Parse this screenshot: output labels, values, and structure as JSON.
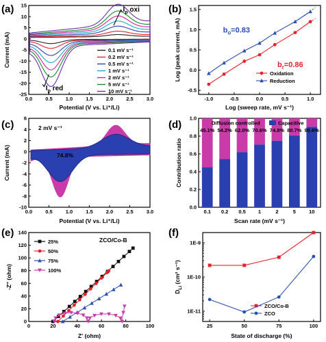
{
  "chart_data": [
    {
      "panel": "(a)",
      "type": "line",
      "xlabel": "Potential (V vs. Li⁺/Li)",
      "ylabel": "Current (mA)",
      "xlim": [
        0.0,
        3.0
      ],
      "ylim": [
        -25,
        15
      ],
      "xticks": [
        "0.0",
        "0.5",
        "1.0",
        "1.5",
        "2.0",
        "2.5",
        "3.0"
      ],
      "yticks": [
        "-25",
        "-20",
        "-15",
        "-10",
        "-5",
        "0",
        "5",
        "10",
        "15"
      ],
      "annotations": [
        "I",
        "p",
        " oxi",
        "I",
        "p",
        " red"
      ],
      "legend": "right",
      "series": [
        {
          "name": "0.1 mV s⁻¹",
          "color": "#222222",
          "scale": 0.1
        },
        {
          "name": "0.2 mV s⁻¹",
          "color": "#e8202a",
          "scale": 0.2
        },
        {
          "name": "0.5 mV s⁻¹",
          "color": "#2a3fb0",
          "scale": 0.35
        },
        {
          "name": "1 mV s⁻¹",
          "color": "#1aa8c8",
          "scale": 0.5
        },
        {
          "name": "2 mV s⁻¹",
          "color": "#d0219a",
          "scale": 0.65
        },
        {
          "name": "5 mV s⁻¹",
          "color": "#148a2a",
          "scale": 0.8
        },
        {
          "name": "10 mV s⁻¹",
          "color": "#6a2bb0",
          "scale": 1.0
        }
      ]
    },
    {
      "panel": "(b)",
      "type": "line",
      "xlabel": "Log (sweep rate, mV s⁻¹)",
      "ylabel": "Log (peak current, mA)",
      "xlim": [
        -1.2,
        1.2
      ],
      "ylim": [
        -0.6,
        1.6
      ],
      "xticks": [
        "-1.0",
        "-0.5",
        "0.0",
        "0.5",
        "1.0"
      ],
      "yticks": [
        "-0.5",
        "0.0",
        "0.5",
        "1.0",
        "1.5"
      ],
      "annotations": [
        {
          "text": "b",
          "sub": "o",
          "rest": "=0.83",
          "color": "#2a4fb0"
        },
        {
          "text": "b",
          "sub": "r",
          "rest": "=0.86",
          "color": "#e8202a"
        }
      ],
      "legend": "bottom-right",
      "series": [
        {
          "name": "Oxidation",
          "color": "#e8202a",
          "marker": "circle",
          "x": [
            -1.0,
            -0.7,
            -0.3,
            0.0,
            0.3,
            0.7,
            1.0
          ],
          "y": [
            -0.35,
            -0.1,
            0.22,
            0.38,
            0.63,
            0.93,
            1.2
          ]
        },
        {
          "name": "Reduction",
          "color": "#2a4fb0",
          "marker": "triangle",
          "x": [
            -1.0,
            -0.7,
            -0.3,
            0.0,
            0.3,
            0.7,
            1.0
          ],
          "y": [
            -0.08,
            0.18,
            0.48,
            0.67,
            0.92,
            1.2,
            1.45
          ]
        }
      ]
    },
    {
      "panel": "(c)",
      "type": "area",
      "label": "2 mV s⁻¹",
      "inner_label": "74.8%",
      "xlabel": "Potential (V vs. Li⁺/Li)",
      "ylabel": "Current (mA)",
      "xlim": [
        0.0,
        3.0
      ],
      "ylim": [
        -10,
        6
      ],
      "xticks": [
        "0.0",
        "0.5",
        "1.0",
        "1.5",
        "2.0",
        "2.5",
        "3.0"
      ],
      "yticks": [
        "-10",
        "-8",
        "-6",
        "-4",
        "-2",
        "0",
        "2",
        "4",
        "6"
      ],
      "colors": {
        "total": "#c83ba8",
        "capacitive": "#2a3fb0"
      }
    },
    {
      "panel": "(d)",
      "type": "bar",
      "xlabel": "Scan rate (mV s⁻¹)",
      "ylabel": "Contribution ratio",
      "ylim": [
        0.0,
        1.0
      ],
      "yticks": [
        "0.0",
        "0.2",
        "0.4",
        "0.6",
        "0.8",
        "1.0"
      ],
      "categories": [
        "0.1",
        "0.2",
        "0.5",
        "1",
        "2",
        "5",
        "10"
      ],
      "legend": "top",
      "series": [
        {
          "name": "Capacitive",
          "color": "#2a3fb0",
          "values": [
            0.451,
            0.542,
            0.62,
            0.706,
            0.748,
            0.807,
            0.906
          ]
        },
        {
          "name": "Diffusion controlled",
          "color": "#c83ba8",
          "values": [
            0.549,
            0.458,
            0.38,
            0.294,
            0.252,
            0.193,
            0.094
          ]
        }
      ],
      "labels": [
        "45.1%",
        "54.2%",
        "62.0%",
        "70.6%",
        "74.8%",
        "80.7%",
        "90.6%"
      ]
    },
    {
      "panel": "(e)",
      "type": "line",
      "title": "ZCO/Co-B",
      "xlabel": "Z' (ohm)",
      "ylabel": "-Z'' (ohm)",
      "xlim": [
        0,
        100
      ],
      "ylim": [
        0,
        140
      ],
      "xticks": [
        "0",
        "20",
        "40",
        "60",
        "80",
        "100"
      ],
      "yticks": [
        "0",
        "20",
        "40",
        "60",
        "80",
        "100",
        "120",
        "140"
      ],
      "legend": "top-left",
      "series": [
        {
          "name": "25%",
          "color": "#111111",
          "marker": "square"
        },
        {
          "name": "50%",
          "color": "#e8202a",
          "marker": "circle"
        },
        {
          "name": "75%",
          "color": "#2a4fb0",
          "marker": "triangle"
        },
        {
          "name": "100%",
          "color": "#c83ba8",
          "marker": "triangle-down"
        }
      ]
    },
    {
      "panel": "(f)",
      "type": "line",
      "xlabel": "State of discharge (%)",
      "ylabel": "D",
      "ylabel_sub": "Li",
      "ylabel_rest": " (cm² s⁻¹)",
      "y_scale": "log",
      "xlim": [
        20,
        105
      ],
      "ylim": [
        5e-12,
        2e-09
      ],
      "xticks": [
        "25",
        "50",
        "75",
        "100"
      ],
      "yticks": [
        "1E-11",
        "1E-10",
        "1E-9"
      ],
      "legend": "bottom-right",
      "series": [
        {
          "name": "ZCO/Co-B",
          "color": "#e8202a",
          "marker": "square",
          "x": [
            25,
            50,
            75,
            100
          ],
          "y": [
            2.2e-10,
            2.2e-10,
            3.8e-10,
            2.6e-09
          ]
        },
        {
          "name": "ZCO",
          "color": "#2a4fb0",
          "marker": "circle",
          "x": [
            25,
            50,
            75,
            100
          ],
          "y": [
            2.2e-11,
            9.5e-12,
            2.6e-11,
            4e-10
          ]
        }
      ]
    }
  ]
}
